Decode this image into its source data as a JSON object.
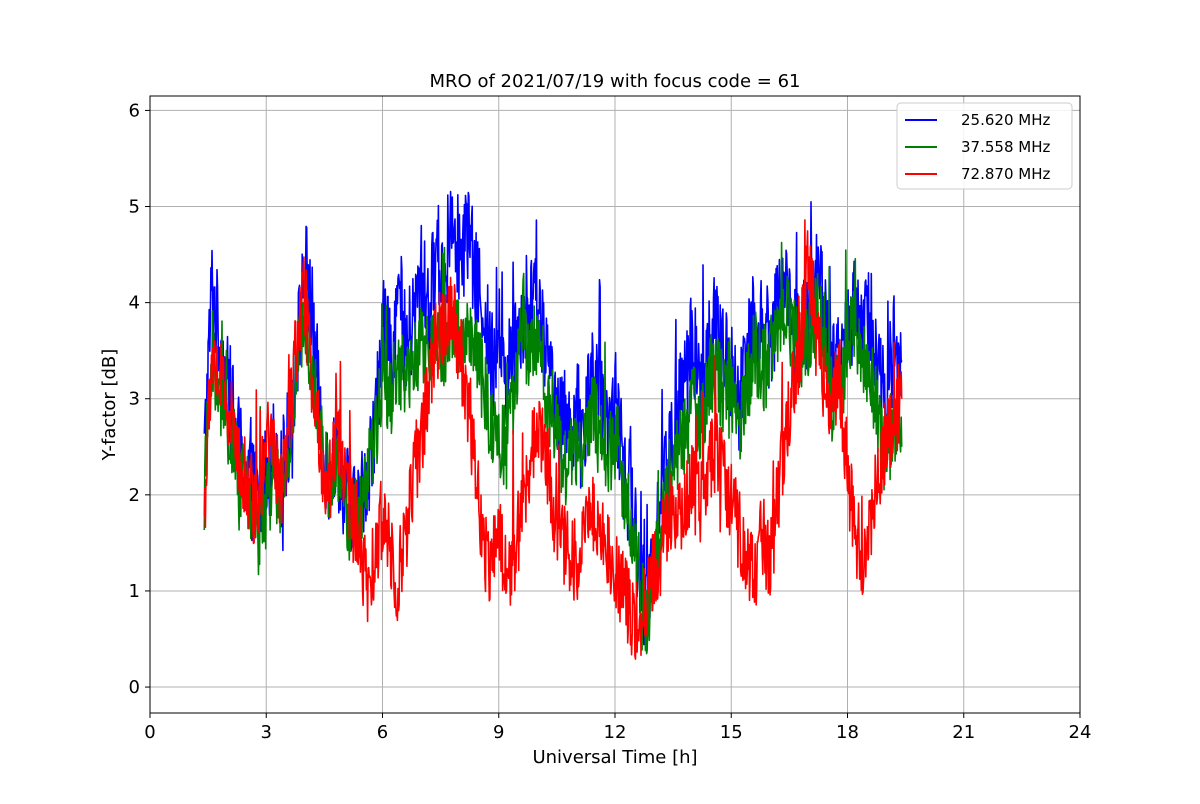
{
  "chart_data": {
    "type": "line",
    "title": "MRO of 2021/07/19 with focus code = 61",
    "xlabel": "Universal Time [h]",
    "ylabel": "Y-factor [dB]",
    "xlim": [
      0,
      24
    ],
    "ylim": [
      -0.27,
      6.15
    ],
    "x_ticks": [
      0,
      3,
      6,
      9,
      12,
      15,
      18,
      21,
      24
    ],
    "y_ticks": [
      0,
      1,
      2,
      3,
      4,
      5,
      6
    ],
    "grid": true,
    "legend_position": "top-right",
    "series": [
      {
        "name": "25.620 MHz",
        "color": "#0000ff",
        "x": [
          1.4,
          1.6,
          1.8,
          2.0,
          2.2,
          2.4,
          2.6,
          2.8,
          3.0,
          3.2,
          3.4,
          3.6,
          3.8,
          4.0,
          4.2,
          4.4,
          4.6,
          4.8,
          5.0,
          5.2,
          5.4,
          5.6,
          5.8,
          6.0,
          6.2,
          6.4,
          6.6,
          6.8,
          7.0,
          7.2,
          7.4,
          7.6,
          7.8,
          8.0,
          8.2,
          8.4,
          8.6,
          8.8,
          9.0,
          9.2,
          9.4,
          9.6,
          9.8,
          10.0,
          10.2,
          10.4,
          10.6,
          10.8,
          11.0,
          11.2,
          11.4,
          11.6,
          11.8,
          12.0,
          12.2,
          12.4,
          12.6,
          12.8,
          13.0,
          13.2,
          13.4,
          13.6,
          13.8,
          14.0,
          14.2,
          14.4,
          14.6,
          14.8,
          15.0,
          15.2,
          15.4,
          15.6,
          15.8,
          16.0,
          16.2,
          16.4,
          16.6,
          16.8,
          17.0,
          17.2,
          17.4,
          17.6,
          17.8,
          18.0,
          18.2,
          18.4,
          18.6,
          18.8,
          19.0,
          19.2,
          19.4
        ],
        "y": [
          2.4,
          4.2,
          3.6,
          3.1,
          2.7,
          2.3,
          2.1,
          1.9,
          2.2,
          2.5,
          2.1,
          2.7,
          3.5,
          4.4,
          3.8,
          2.8,
          2.2,
          2.5,
          2.1,
          1.9,
          1.8,
          2.3,
          2.6,
          3.8,
          3.4,
          4.1,
          3.5,
          3.8,
          4.3,
          3.9,
          4.6,
          4.1,
          5.1,
          4.4,
          4.8,
          4.2,
          4.0,
          3.4,
          3.7,
          3.2,
          3.6,
          3.9,
          3.8,
          4.1,
          3.4,
          3.2,
          2.8,
          2.7,
          2.9,
          2.6,
          3.4,
          3.0,
          2.5,
          3.1,
          2.2,
          2.0,
          1.4,
          0.8,
          1.5,
          2.1,
          2.4,
          2.8,
          3.2,
          3.6,
          3.1,
          3.5,
          3.8,
          3.4,
          3.3,
          2.9,
          3.6,
          3.9,
          3.7,
          3.6,
          4.0,
          4.2,
          3.8,
          3.6,
          3.9,
          4.3,
          4.0,
          3.4,
          3.3,
          3.8,
          4.1,
          3.6,
          3.9,
          3.3,
          3.0,
          3.6,
          3.4
        ]
      },
      {
        "name": "37.558 MHz",
        "color": "#008000",
        "x": [
          1.4,
          1.6,
          1.8,
          2.0,
          2.2,
          2.4,
          2.6,
          2.8,
          3.0,
          3.2,
          3.4,
          3.6,
          3.8,
          4.0,
          4.2,
          4.4,
          4.6,
          4.8,
          5.0,
          5.2,
          5.4,
          5.6,
          5.8,
          6.0,
          6.2,
          6.4,
          6.6,
          6.8,
          7.0,
          7.2,
          7.4,
          7.6,
          7.8,
          8.0,
          8.2,
          8.4,
          8.6,
          8.8,
          9.0,
          9.2,
          9.4,
          9.6,
          9.8,
          10.0,
          10.2,
          10.4,
          10.6,
          10.8,
          11.0,
          11.2,
          11.4,
          11.6,
          11.8,
          12.0,
          12.2,
          12.4,
          12.6,
          12.8,
          13.0,
          13.2,
          13.4,
          13.6,
          13.8,
          14.0,
          14.2,
          14.4,
          14.6,
          14.8,
          15.0,
          15.2,
          15.4,
          15.6,
          15.8,
          16.0,
          16.2,
          16.4,
          16.6,
          16.8,
          17.0,
          17.2,
          17.4,
          17.6,
          17.8,
          18.0,
          18.2,
          18.4,
          18.6,
          18.8,
          19.0,
          19.2,
          19.4
        ],
        "y": [
          2.0,
          3.5,
          3.0,
          2.7,
          2.4,
          2.1,
          1.9,
          1.6,
          1.9,
          2.2,
          1.9,
          2.5,
          3.3,
          3.8,
          3.4,
          2.6,
          2.1,
          2.3,
          1.9,
          1.7,
          1.8,
          2.2,
          2.5,
          3.3,
          3.0,
          3.4,
          3.1,
          3.3,
          3.6,
          3.4,
          3.7,
          3.5,
          3.8,
          3.6,
          3.7,
          3.4,
          3.2,
          2.6,
          2.6,
          2.5,
          3.2,
          3.6,
          3.5,
          3.6,
          3.0,
          2.9,
          2.4,
          2.3,
          2.5,
          2.4,
          2.9,
          2.6,
          2.2,
          2.8,
          2.0,
          1.8,
          1.2,
          0.6,
          1.2,
          1.8,
          2.0,
          2.4,
          2.6,
          3.0,
          2.7,
          3.1,
          3.4,
          3.0,
          3.0,
          2.6,
          3.1,
          3.5,
          3.3,
          3.4,
          3.8,
          4.0,
          3.6,
          3.5,
          3.6,
          3.9,
          3.7,
          3.0,
          3.0,
          3.6,
          3.8,
          3.4,
          3.3,
          2.7,
          2.4,
          2.8,
          2.5
        ]
      },
      {
        "name": "72.870 MHz",
        "color": "#ff0000",
        "x": [
          1.4,
          1.6,
          1.8,
          2.0,
          2.2,
          2.4,
          2.6,
          2.8,
          3.0,
          3.2,
          3.4,
          3.6,
          3.8,
          4.0,
          4.2,
          4.4,
          4.6,
          4.8,
          5.0,
          5.2,
          5.4,
          5.6,
          5.8,
          6.0,
          6.2,
          6.4,
          6.6,
          6.8,
          7.0,
          7.2,
          7.4,
          7.6,
          7.8,
          8.0,
          8.2,
          8.4,
          8.6,
          8.8,
          9.0,
          9.2,
          9.4,
          9.6,
          9.8,
          10.0,
          10.2,
          10.4,
          10.6,
          10.8,
          11.0,
          11.2,
          11.4,
          11.6,
          11.8,
          12.0,
          12.2,
          12.4,
          12.6,
          12.8,
          13.0,
          13.2,
          13.4,
          13.6,
          13.8,
          14.0,
          14.2,
          14.4,
          14.6,
          14.8,
          15.0,
          15.2,
          15.4,
          15.6,
          15.8,
          16.0,
          16.2,
          16.4,
          16.6,
          16.8,
          17.0,
          17.2,
          17.4,
          17.6,
          17.8,
          18.0,
          18.2,
          18.4,
          18.6,
          18.8,
          19.0,
          19.2,
          19.4
        ],
        "y": [
          1.8,
          3.5,
          3.2,
          2.9,
          2.6,
          2.2,
          2.0,
          1.8,
          2.8,
          2.4,
          2.0,
          2.8,
          3.6,
          4.1,
          3.0,
          2.5,
          2.0,
          2.7,
          2.3,
          1.8,
          1.5,
          1.0,
          1.3,
          1.8,
          1.5,
          1.1,
          1.6,
          2.2,
          2.6,
          3.2,
          3.6,
          3.8,
          4.0,
          3.5,
          3.0,
          2.2,
          1.5,
          1.3,
          1.6,
          1.2,
          1.4,
          1.8,
          2.4,
          2.8,
          2.5,
          1.9,
          1.5,
          1.4,
          1.3,
          1.6,
          1.9,
          1.6,
          1.5,
          1.2,
          1.0,
          0.8,
          0.7,
          0.9,
          1.2,
          1.5,
          1.8,
          1.7,
          1.9,
          2.1,
          1.9,
          2.3,
          2.5,
          2.2,
          1.9,
          1.6,
          1.4,
          1.2,
          1.6,
          1.2,
          2.0,
          2.6,
          3.1,
          3.6,
          4.5,
          3.6,
          3.2,
          3.0,
          3.2,
          2.2,
          1.6,
          1.4,
          1.7,
          2.2,
          2.6,
          2.8,
          3.0
        ]
      }
    ]
  }
}
